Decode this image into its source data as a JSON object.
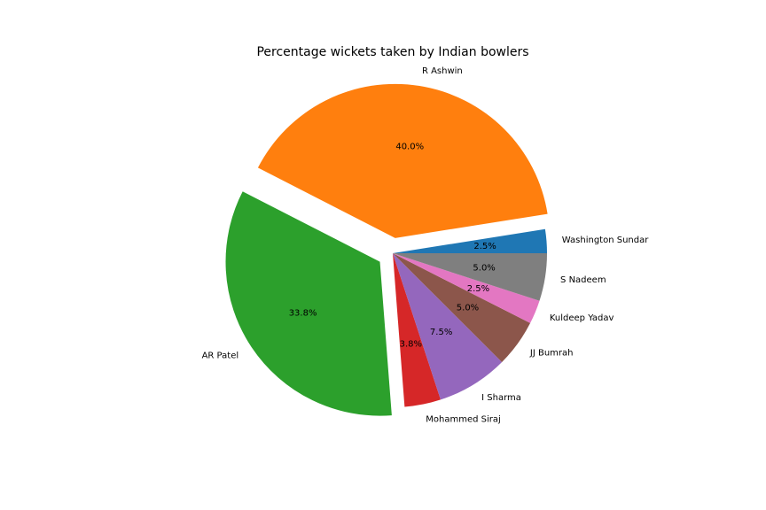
{
  "chart_data": {
    "type": "pie",
    "title": "Percentage wickets taken by Indian bowlers",
    "slices": [
      {
        "label": "Washington Sundar",
        "value": 2.5,
        "pct_label": "2.5%",
        "color": "#1f77b4",
        "exploded": false
      },
      {
        "label": "R Ashwin",
        "value": 40.0,
        "pct_label": "40.0%",
        "color": "#ff7f0e",
        "exploded": true
      },
      {
        "label": "AR Patel",
        "value": 33.8,
        "pct_label": "33.8%",
        "color": "#2ca02c",
        "exploded": true
      },
      {
        "label": "Mohammed Siraj",
        "value": 3.8,
        "pct_label": "3.8%",
        "color": "#d62728",
        "exploded": false
      },
      {
        "label": "I Sharma",
        "value": 7.5,
        "pct_label": "7.5%",
        "color": "#9467bd",
        "exploded": false
      },
      {
        "label": "JJ Bumrah",
        "value": 5.0,
        "pct_label": "5.0%",
        "color": "#8c564b",
        "exploded": false
      },
      {
        "label": "Kuldeep Yadav",
        "value": 2.5,
        "pct_label": "2.5%",
        "color": "#e377c2",
        "exploded": false
      },
      {
        "label": "S Nadeem",
        "value": 5.0,
        "pct_label": "5.0%",
        "color": "#7f7f7f",
        "exploded": false
      }
    ],
    "start_angle_deg": 0,
    "direction": "counterclockwise",
    "legend": "none"
  }
}
